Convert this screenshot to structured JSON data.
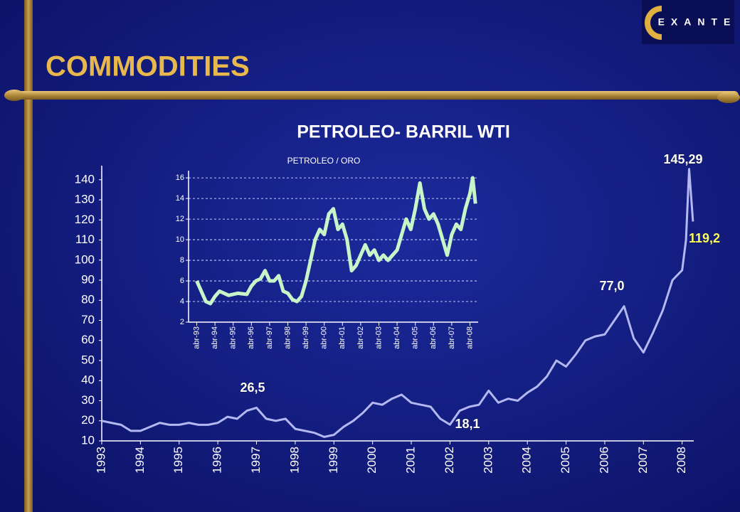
{
  "header": {
    "title": "COMMODITIES",
    "logo": "EXANTE"
  },
  "chart_data": [
    {
      "type": "line",
      "title": "PETROLEO- BARRIL WTI",
      "x": [
        1993.0,
        1993.25,
        1993.5,
        1993.75,
        1994.0,
        1994.25,
        1994.5,
        1994.75,
        1995.0,
        1995.25,
        1995.5,
        1995.75,
        1996.0,
        1996.25,
        1996.5,
        1996.75,
        1997.0,
        1997.25,
        1997.5,
        1997.75,
        1998.0,
        1998.25,
        1998.5,
        1998.75,
        1999.0,
        1999.25,
        1999.5,
        1999.75,
        2000.0,
        2000.25,
        2000.5,
        2000.75,
        2001.0,
        2001.25,
        2001.5,
        2001.75,
        2002.0,
        2002.25,
        2002.5,
        2002.75,
        2003.0,
        2003.25,
        2003.5,
        2003.75,
        2004.0,
        2004.25,
        2004.5,
        2004.75,
        2005.0,
        2005.25,
        2005.5,
        2005.75,
        2006.0,
        2006.25,
        2006.5,
        2006.75,
        2007.0,
        2007.25,
        2007.5,
        2007.75,
        2008.0,
        2008.1,
        2008.18,
        2008.28
      ],
      "series": [
        {
          "name": "WTI",
          "color": "#b4b8f0",
          "values": [
            20,
            19,
            18,
            15,
            15,
            17,
            19,
            18,
            18,
            19,
            18,
            18,
            19,
            22,
            21,
            25,
            26.5,
            21,
            20,
            21,
            16,
            15,
            14,
            12,
            13,
            17,
            20,
            24,
            29,
            28,
            31,
            33,
            29,
            28,
            27,
            21,
            18.1,
            25,
            27,
            28,
            35,
            29,
            31,
            30,
            34,
            37,
            42,
            50,
            47,
            53,
            60,
            62,
            63,
            70,
            77.0,
            61,
            54,
            64,
            75,
            90,
            95,
            110,
            145.29,
            119.2
          ]
        }
      ],
      "annotations": [
        "145,29",
        "119,2",
        "77,0",
        "26,5",
        "18,1"
      ],
      "xlim": [
        1993,
        2008.3
      ],
      "xticks": [
        1993,
        1994,
        1995,
        1996,
        1997,
        1998,
        1999,
        2000,
        2001,
        2002,
        2003,
        2004,
        2005,
        2006,
        2007,
        2008
      ],
      "ylim": [
        10,
        147
      ],
      "yticks": [
        10,
        20,
        30,
        40,
        50,
        60,
        70,
        80,
        90,
        100,
        110,
        120,
        130,
        140
      ]
    },
    {
      "type": "line",
      "title": "PETROLEO  / ORO",
      "x": [
        1993.25,
        1993.5,
        1993.75,
        1994.0,
        1994.25,
        1994.5,
        1995.0,
        1995.5,
        1996.0,
        1996.25,
        1996.5,
        1996.75,
        1997.0,
        1997.25,
        1997.5,
        1997.75,
        1998.0,
        1998.25,
        1998.5,
        1998.75,
        1999.0,
        1999.25,
        1999.5,
        1999.75,
        2000.0,
        2000.25,
        2000.5,
        2000.75,
        2001.0,
        2001.25,
        2001.5,
        2001.75,
        2002.0,
        2002.25,
        2002.5,
        2002.75,
        2003.0,
        2003.25,
        2003.5,
        2003.75,
        2004.0,
        2004.25,
        2004.5,
        2004.75,
        2005.0,
        2005.25,
        2005.5,
        2005.75,
        2006.0,
        2006.25,
        2006.5,
        2006.75,
        2007.0,
        2007.25,
        2007.5,
        2007.75,
        2008.0,
        2008.25,
        2008.4,
        2008.55
      ],
      "series": [
        {
          "name": "PETROLEO / ORO",
          "color": "#c8f5c8",
          "values": [
            6,
            5,
            4,
            3.8,
            4.5,
            5,
            4.6,
            4.8,
            4.7,
            5.5,
            6,
            6.2,
            7,
            6,
            6,
            6.5,
            5,
            4.8,
            4.2,
            4,
            4.5,
            6,
            8,
            10,
            11,
            10.5,
            12.5,
            13,
            11,
            11.5,
            10,
            7,
            7.5,
            8.5,
            9.5,
            8.5,
            9,
            8,
            8.5,
            8,
            8.5,
            9,
            10.5,
            12,
            11,
            13,
            15.5,
            13,
            12,
            12.5,
            11.5,
            10,
            8.5,
            10.5,
            11.5,
            11,
            13,
            14.5,
            16,
            13.5
          ]
        }
      ],
      "xlim": [
        1992.8,
        2008.7
      ],
      "xticks": [
        {
          "value": 1993.25,
          "label": "abr-93"
        },
        {
          "value": 1994.25,
          "label": "abr-94"
        },
        {
          "value": 1995.25,
          "label": "abr-95"
        },
        {
          "value": 1996.25,
          "label": "abr-96"
        },
        {
          "value": 1997.25,
          "label": "abr-97"
        },
        {
          "value": 1998.25,
          "label": "abr-98"
        },
        {
          "value": 1999.25,
          "label": "abr-99"
        },
        {
          "value": 2000.25,
          "label": "abr-00"
        },
        {
          "value": 2001.25,
          "label": "abr-01"
        },
        {
          "value": 2002.25,
          "label": "abr-02"
        },
        {
          "value": 2003.25,
          "label": "abr-03"
        },
        {
          "value": 2004.25,
          "label": "abr-04"
        },
        {
          "value": 2005.25,
          "label": "abr-05"
        },
        {
          "value": 2006.25,
          "label": "abr-06"
        },
        {
          "value": 2007.25,
          "label": "abr-07"
        },
        {
          "value": 2008.25,
          "label": "abr-08"
        }
      ],
      "ylim": [
        2,
        16.7
      ],
      "yticks": [
        2,
        4,
        6,
        8,
        10,
        12,
        14,
        16
      ],
      "grid": true
    }
  ]
}
